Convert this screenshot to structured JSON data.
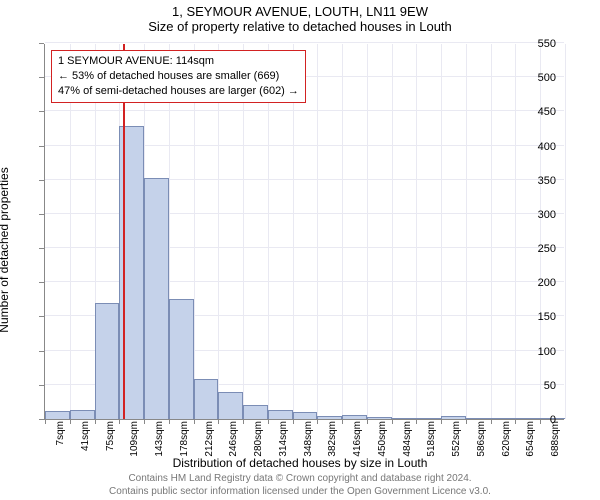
{
  "title": "1, SEYMOUR AVENUE, LOUTH, LN11 9EW",
  "subtitle": "Size of property relative to detached houses in Louth",
  "ylabel": "Number of detached properties",
  "xlabel": "Distribution of detached houses by size in Louth",
  "footer_line1": "Contains HM Land Registry data © Crown copyright and database right 2024.",
  "footer_line2": "Contains public sector information licensed under the Open Government Licence v3.0.",
  "chart": {
    "type": "histogram",
    "x_categories": [
      "7sqm",
      "41sqm",
      "75sqm",
      "109sqm",
      "143sqm",
      "178sqm",
      "212sqm",
      "246sqm",
      "280sqm",
      "314sqm",
      "348sqm",
      "382sqm",
      "416sqm",
      "450sqm",
      "484sqm",
      "518sqm",
      "552sqm",
      "586sqm",
      "620sqm",
      "654sqm",
      "688sqm"
    ],
    "x_tick_every": 1,
    "ylim": [
      0,
      550
    ],
    "ytick_step": 50,
    "bar_color": "#c5d2ea",
    "bar_border": "#7b8db5",
    "grid_color": "#e9e9f2",
    "background": "#ffffff",
    "values": [
      12,
      13,
      170,
      428,
      353,
      176,
      58,
      40,
      20,
      13,
      10,
      5,
      6,
      3,
      2,
      2,
      5,
      2,
      1,
      0,
      1
    ],
    "marker": {
      "x_index": 3.15,
      "color": "#d22222",
      "callout": {
        "line1": "1 SEYMOUR AVENUE: 114sqm",
        "line2": "← 53% of detached houses are smaller (669)",
        "line3": "47% of semi-detached houses are larger (602) →"
      }
    }
  }
}
